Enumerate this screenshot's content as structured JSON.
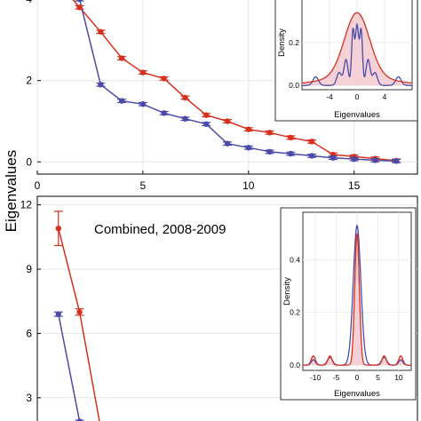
{
  "figure": {
    "ylabel": "Eigenvalues",
    "colors": {
      "red": "#d7301f",
      "blue": "#4a4aa8",
      "fill": "#f2c9cf",
      "grid": "#e6e6e6"
    }
  },
  "chart_data": [
    {
      "type": "line",
      "xlim": [
        0,
        18
      ],
      "ylim": [
        -0.3,
        4.2
      ],
      "xticks": [
        0,
        5,
        10,
        15
      ],
      "yticks": [
        0,
        2,
        4
      ],
      "grid": true,
      "series": [
        {
          "color": "red",
          "x": [
            1,
            2,
            3,
            4,
            5,
            6,
            7,
            8,
            9,
            10,
            11,
            12,
            13,
            14,
            15,
            16,
            17
          ],
          "y": [
            4.4,
            3.8,
            3.2,
            2.55,
            2.2,
            2.05,
            1.58,
            1.15,
            1.0,
            0.8,
            0.72,
            0.6,
            0.5,
            0.18,
            0.13,
            0.08,
            0.03
          ]
        },
        {
          "color": "blue",
          "x": [
            1,
            2,
            3,
            4,
            5,
            6,
            7,
            8,
            9,
            10,
            11,
            12,
            13,
            14,
            15,
            16,
            17
          ],
          "y": [
            4.4,
            4.0,
            1.9,
            1.5,
            1.42,
            1.2,
            1.06,
            0.93,
            0.45,
            0.35,
            0.25,
            0.2,
            0.15,
            0.1,
            0.07,
            0.04,
            0.02
          ]
        }
      ],
      "inset": {
        "type": "area",
        "xlabel": "Eigenvalues",
        "ylabel": "Density",
        "xlim": [
          -8,
          8
        ],
        "ylim": [
          -0.02,
          0.42
        ],
        "xticks": [
          -4,
          0,
          4
        ],
        "yticks": [
          0.0,
          0.2
        ],
        "ytick_labels": [
          "0.0",
          "0.2"
        ],
        "grid": true
      }
    },
    {
      "type": "line",
      "annotation": "Combined, 2008-2009",
      "xlim": [
        0,
        18
      ],
      "ylim": [
        1.5,
        12.4
      ],
      "yticks": [
        3,
        6,
        9,
        12
      ],
      "grid": true,
      "series": [
        {
          "color": "red",
          "x": [
            1,
            2,
            3
          ],
          "y": [
            10.9,
            7.0,
            1.6
          ],
          "err": [
            0.8,
            0.15,
            0.1
          ]
        },
        {
          "color": "blue",
          "x": [
            1,
            2,
            3
          ],
          "y": [
            6.9,
            1.9,
            1.5
          ],
          "err": [
            0.1,
            0.05,
            0.05
          ]
        }
      ],
      "inset": {
        "type": "area",
        "xlabel": "Eigenvalues",
        "ylabel": "Density",
        "xlim": [
          -13,
          13
        ],
        "ylim": [
          -0.02,
          0.58
        ],
        "xticks": [
          -10,
          -5,
          0,
          5,
          10
        ],
        "yticks": [
          0.0,
          0.2,
          0.4
        ],
        "ytick_labels": [
          "0.0",
          "0.2",
          "0.4"
        ],
        "grid": true
      }
    }
  ]
}
